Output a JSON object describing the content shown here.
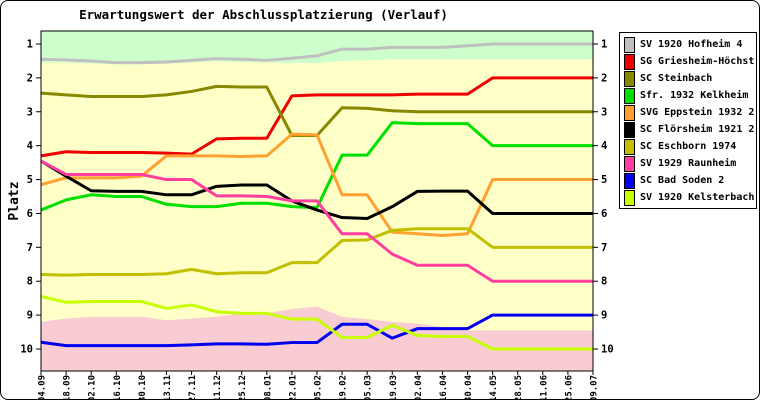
{
  "window": {
    "background": "#FFFFFF",
    "border_color": "#000000"
  },
  "chart_data": {
    "type": "line",
    "title": "Erwartungswert der Abschlussplatzierung (Verlauf)",
    "ylabel": "Platz",
    "ylim": [
      0.6,
      10.65
    ],
    "y_axis_direction": "1 at top, 10 at bottom",
    "y_ticks": [
      1,
      2,
      3,
      4,
      5,
      6,
      7,
      8,
      9,
      10
    ],
    "grid": "off",
    "legend_position": "right",
    "x_labels": [
      "04.09",
      "18.09",
      "02.10",
      "16.10",
      "30.10",
      "13.11",
      "27.11",
      "11.12",
      "25.12",
      "08.01",
      "22.01",
      "05.02",
      "19.02",
      "05.03",
      "19.03",
      "02.04",
      "16.04",
      "30.04",
      "14.05",
      "28.05",
      "11.06",
      "25.06",
      "09.07"
    ],
    "series": [
      {
        "name": "SV 1920 Hofheim 4",
        "color": "#C0C0C0",
        "values": [
          1.45,
          1.47,
          1.5,
          1.55,
          1.55,
          1.53,
          1.48,
          1.43,
          1.45,
          1.48,
          1.42,
          1.35,
          1.15,
          1.15,
          1.1,
          1.1,
          1.1,
          1.05,
          1.0,
          1.0,
          1.0,
          1.0,
          1.0
        ]
      },
      {
        "name": "SG Griesheim-Höchst",
        "color": "#EE0000",
        "values": [
          4.3,
          4.18,
          4.2,
          4.2,
          4.2,
          4.22,
          4.25,
          3.8,
          3.78,
          3.78,
          2.53,
          2.5,
          2.5,
          2.5,
          2.5,
          2.48,
          2.48,
          2.48,
          2.0,
          2.0,
          2.0,
          2.0,
          2.0
        ]
      },
      {
        "name": "SC Steinbach",
        "color": "#878700",
        "values": [
          2.45,
          2.5,
          2.55,
          2.55,
          2.55,
          2.5,
          2.4,
          2.25,
          2.27,
          2.27,
          3.7,
          3.7,
          2.88,
          2.9,
          2.97,
          3.0,
          3.0,
          3.0,
          3.0,
          3.0,
          3.0,
          3.0,
          3.0
        ]
      },
      {
        "name": "Sfr. 1932 Kelkheim",
        "color": "#00E000",
        "values": [
          5.9,
          5.6,
          5.45,
          5.5,
          5.5,
          5.73,
          5.8,
          5.8,
          5.7,
          5.7,
          5.8,
          5.83,
          4.28,
          4.28,
          3.32,
          3.35,
          3.35,
          3.35,
          4.0,
          4.0,
          4.0,
          4.0,
          4.0
        ]
      },
      {
        "name": "SVG Eppstein 1932 2",
        "color": "#FFA030",
        "values": [
          5.15,
          4.95,
          4.95,
          4.95,
          4.9,
          4.3,
          4.3,
          4.3,
          4.32,
          4.3,
          3.66,
          3.68,
          5.45,
          5.45,
          6.55,
          6.6,
          6.65,
          6.6,
          5.0,
          5.0,
          5.0,
          5.0,
          5.0
        ]
      },
      {
        "name": "SC Flörsheim 1921 2",
        "color": "#000000",
        "values": [
          4.45,
          4.9,
          5.33,
          5.35,
          5.35,
          5.45,
          5.45,
          5.2,
          5.16,
          5.16,
          5.63,
          5.9,
          6.12,
          6.15,
          5.8,
          5.35,
          5.34,
          5.34,
          6.0,
          6.0,
          6.0,
          6.0,
          6.0
        ]
      },
      {
        "name": "SC Eschborn 1974",
        "color": "#C0C000",
        "values": [
          7.8,
          7.82,
          7.8,
          7.8,
          7.8,
          7.78,
          7.65,
          7.78,
          7.75,
          7.75,
          7.45,
          7.45,
          6.8,
          6.78,
          6.5,
          6.45,
          6.45,
          6.45,
          7.0,
          7.0,
          7.0,
          7.0,
          7.0
        ]
      },
      {
        "name": "SV 1929 Raunheim",
        "color": "#FF3F9F",
        "values": [
          4.45,
          4.85,
          4.85,
          4.85,
          4.85,
          5.0,
          5.0,
          5.48,
          5.48,
          5.5,
          5.63,
          5.63,
          6.6,
          6.6,
          7.2,
          7.53,
          7.53,
          7.53,
          8.0,
          8.0,
          8.0,
          8.0,
          8.0
        ]
      },
      {
        "name": "SC Bad Soden 2",
        "color": "#0000EE",
        "values": [
          9.8,
          9.9,
          9.9,
          9.9,
          9.9,
          9.9,
          9.88,
          9.85,
          9.85,
          9.86,
          9.81,
          9.81,
          9.27,
          9.27,
          9.68,
          9.4,
          9.4,
          9.4,
          9.0,
          9.0,
          9.0,
          9.0,
          9.0
        ]
      },
      {
        "name": "SV 1920 Kelsterbach",
        "color": "#C8FF00",
        "values": [
          8.45,
          8.62,
          8.6,
          8.6,
          8.6,
          8.8,
          8.7,
          8.9,
          8.95,
          8.95,
          9.12,
          9.12,
          9.66,
          9.66,
          9.3,
          9.6,
          9.63,
          9.63,
          10.0,
          10.0,
          10.0,
          10.0,
          10.0
        ]
      }
    ],
    "zones": {
      "top_color": "#CCFFCC",
      "mid_color": "#FFFFC8",
      "bottom_color": "#F8CCD2",
      "top_boundary": [
        1.55,
        1.55,
        1.57,
        1.6,
        1.6,
        1.58,
        1.55,
        1.5,
        1.53,
        1.55,
        1.56,
        1.56,
        1.5,
        1.48,
        1.45,
        1.45,
        1.45,
        1.45,
        1.45,
        1.45,
        1.45,
        1.45,
        1.45
      ],
      "bottom_boundary": [
        9.2,
        9.1,
        9.05,
        9.05,
        9.05,
        9.15,
        9.1,
        9.05,
        8.95,
        8.95,
        8.82,
        8.75,
        9.05,
        9.12,
        9.2,
        9.25,
        9.35,
        9.45,
        9.45,
        9.45,
        9.45,
        9.45,
        9.45
      ]
    }
  }
}
